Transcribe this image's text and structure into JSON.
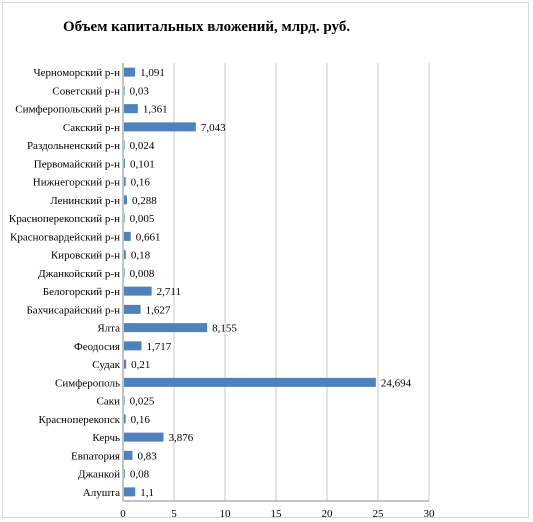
{
  "chart_data": {
    "type": "bar",
    "orientation": "horizontal",
    "title": "Объем капитальных вложений, млрд. руб.",
    "xlabel": "",
    "ylabel": "",
    "xlim": [
      0,
      30
    ],
    "x_ticks": [
      "0",
      "5",
      "10",
      "15",
      "20",
      "25",
      "30"
    ],
    "grid": "vertical",
    "legend": "none",
    "bar_color": "#4f81bd",
    "categories": [
      "Черноморский р-н",
      "Советский р-н",
      "Симферопольский р-н",
      "Сакский р-н",
      "Раздольненский р-н",
      "Первомайский р-н",
      "Нижнегорский р-н",
      "Ленинский р-н",
      "Красноперекопский р-н",
      "Красногвардейский р-н",
      "Кировский р-н",
      "Джанкойский р-н",
      "Белогорский р-н",
      "Бахчисарайский р-н",
      "Ялта",
      "Феодосия",
      "Судак",
      "Симферополь",
      "Саки",
      "Красноперекопск",
      "Керчь",
      "Евпатория",
      "Джанкой",
      "Алушта"
    ],
    "values": [
      1.091,
      0.03,
      1.361,
      7.043,
      0.024,
      0.101,
      0.16,
      0.288,
      0.005,
      0.661,
      0.18,
      0.008,
      2.711,
      1.627,
      8.155,
      1.717,
      0.21,
      24.694,
      0.025,
      0.16,
      3.876,
      0.83,
      0.08,
      1.1
    ],
    "value_labels": [
      "1,091",
      "0,03",
      "1,361",
      "7,043",
      "0,024",
      "0,101",
      "0,16",
      "0,288",
      "0,005",
      "0,661",
      "0,18",
      "0,008",
      "2,711",
      "1,627",
      "8,155",
      "1,717",
      "0,21",
      "24,694",
      "0,025",
      "0,16",
      "3,876",
      "0,83",
      "0,08",
      "1,1"
    ]
  }
}
